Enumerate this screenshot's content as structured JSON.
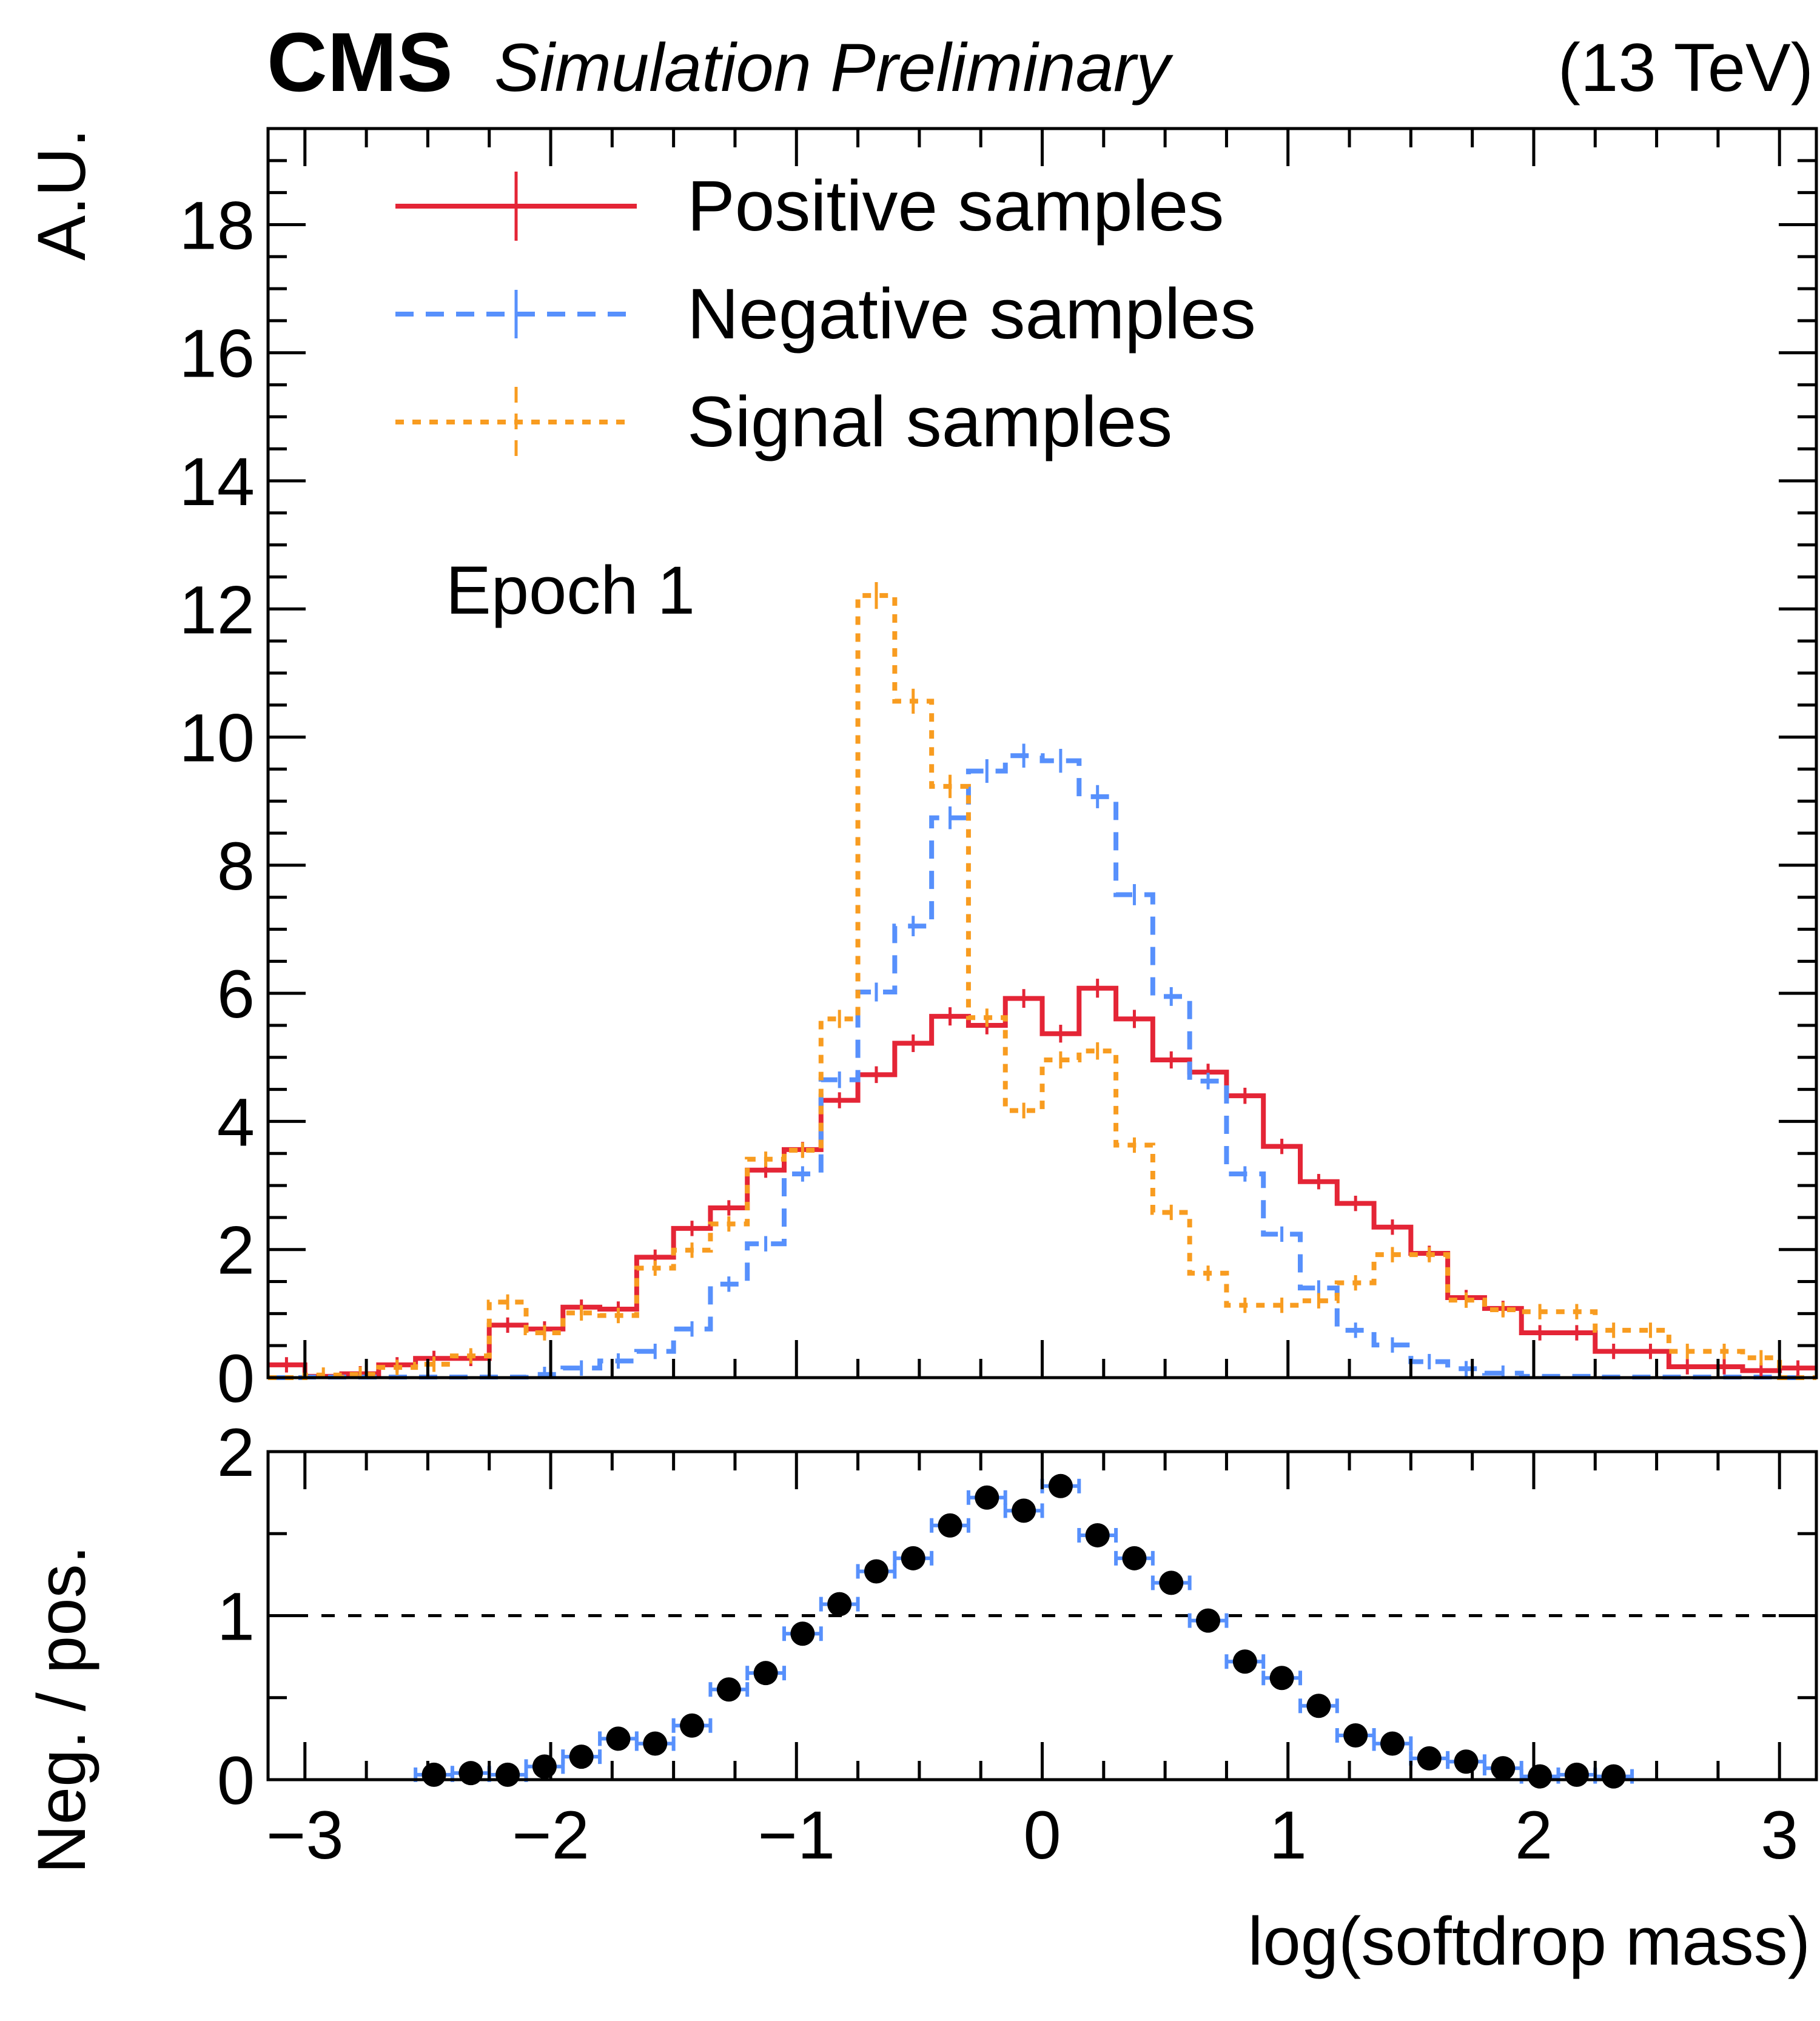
{
  "header": {
    "experiment": "CMS",
    "status": "Simulation Preliminary",
    "energy": "(13 TeV)"
  },
  "annotation": "Epoch 1",
  "chart_data": [
    {
      "type": "histogram-step",
      "panel": "main",
      "ylabel": "A.U.",
      "xlabel": "",
      "xlim": [
        -3.15,
        3.15
      ],
      "ylim": [
        0,
        19.5
      ],
      "grid": false,
      "legend_position": "top-left",
      "xticks": [
        -3,
        -2,
        -1,
        0,
        1,
        2,
        3
      ],
      "yticks": [
        0,
        2,
        4,
        6,
        8,
        10,
        12,
        14,
        16,
        18
      ],
      "ytick_labels": [
        "0",
        "2",
        "4",
        "6",
        "8",
        "10",
        "12",
        "14",
        "16",
        "18"
      ],
      "bin_start": -3.15,
      "bin_width": 0.15,
      "series": [
        {
          "name": "Positive samples",
          "color": "#e42536",
          "style": "solid",
          "values": [
            0.2,
            0.02,
            0.06,
            0.2,
            0.3,
            0.3,
            0.82,
            0.76,
            1.1,
            1.07,
            1.88,
            2.33,
            2.65,
            3.24,
            3.56,
            4.33,
            4.73,
            5.22,
            5.64,
            5.5,
            5.92,
            5.37,
            6.08,
            5.6,
            4.96,
            4.77,
            4.4,
            3.61,
            3.06,
            2.72,
            2.35,
            1.94,
            1.25,
            1.08,
            0.7,
            0.7,
            0.41,
            0.41,
            0.17,
            0.17,
            0.11,
            0.15
          ]
        },
        {
          "name": "Negative samples",
          "color": "#5790fc",
          "style": "dashed",
          "values": [
            0.0,
            0.01,
            0.01,
            0.01,
            0.01,
            0.01,
            0.01,
            0.05,
            0.15,
            0.26,
            0.41,
            0.76,
            1.46,
            2.09,
            3.18,
            4.65,
            6.02,
            7.05,
            8.74,
            9.47,
            9.71,
            9.63,
            9.07,
            7.54,
            5.95,
            4.63,
            3.18,
            2.24,
            1.4,
            0.74,
            0.51,
            0.25,
            0.14,
            0.07,
            0.02,
            0.02,
            0.01,
            0.01,
            0.01,
            0.01,
            0.01,
            0.0
          ]
        },
        {
          "name": "Signal samples",
          "color": "#f89c20",
          "style": "dotted",
          "values": [
            0.0,
            0.04,
            0.05,
            0.16,
            0.21,
            0.34,
            1.18,
            0.7,
            1.01,
            0.97,
            1.71,
            1.99,
            2.4,
            3.41,
            3.55,
            5.6,
            12.21,
            10.56,
            9.23,
            5.62,
            4.17,
            4.96,
            5.1,
            3.63,
            2.58,
            1.63,
            1.13,
            1.13,
            1.2,
            1.48,
            1.92,
            1.92,
            1.21,
            1.06,
            1.03,
            1.03,
            0.74,
            0.74,
            0.41,
            0.41,
            0.31,
            0.0
          ]
        }
      ]
    },
    {
      "type": "scatter",
      "panel": "ratio",
      "ylabel": "Neg. / pos.",
      "xlabel": "log(softdrop mass)",
      "xlim": [
        -3.15,
        3.15
      ],
      "ylim": [
        0,
        2
      ],
      "xticks": [
        -3,
        -2,
        -1,
        0,
        1,
        2,
        3
      ],
      "xtick_labels": [
        "−3",
        "−2",
        "−1",
        "0",
        "1",
        "2",
        "3"
      ],
      "yticks": [
        0,
        1,
        2
      ],
      "ytick_labels": [
        "0",
        "1",
        "2"
      ],
      "reference_line": 1,
      "marker_color": "#000000",
      "errorbar_color": "#5790fc",
      "x": [
        -2.475,
        -2.325,
        -2.175,
        -2.025,
        -1.875,
        -1.725,
        -1.575,
        -1.425,
        -1.275,
        -1.125,
        -0.975,
        -0.825,
        -0.675,
        -0.525,
        -0.375,
        -0.225,
        -0.075,
        0.075,
        0.225,
        0.375,
        0.525,
        0.675,
        0.825,
        0.975,
        1.125,
        1.275,
        1.425,
        1.575,
        1.725,
        1.875,
        2.025,
        2.175,
        2.325
      ],
      "y": [
        0.03,
        0.04,
        0.03,
        0.08,
        0.14,
        0.25,
        0.22,
        0.33,
        0.55,
        0.65,
        0.89,
        1.07,
        1.27,
        1.35,
        1.55,
        1.72,
        1.64,
        1.79,
        1.49,
        1.35,
        1.2,
        0.97,
        0.72,
        0.62,
        0.45,
        0.27,
        0.22,
        0.13,
        0.11,
        0.07,
        0.02,
        0.03,
        0.02
      ]
    }
  ]
}
